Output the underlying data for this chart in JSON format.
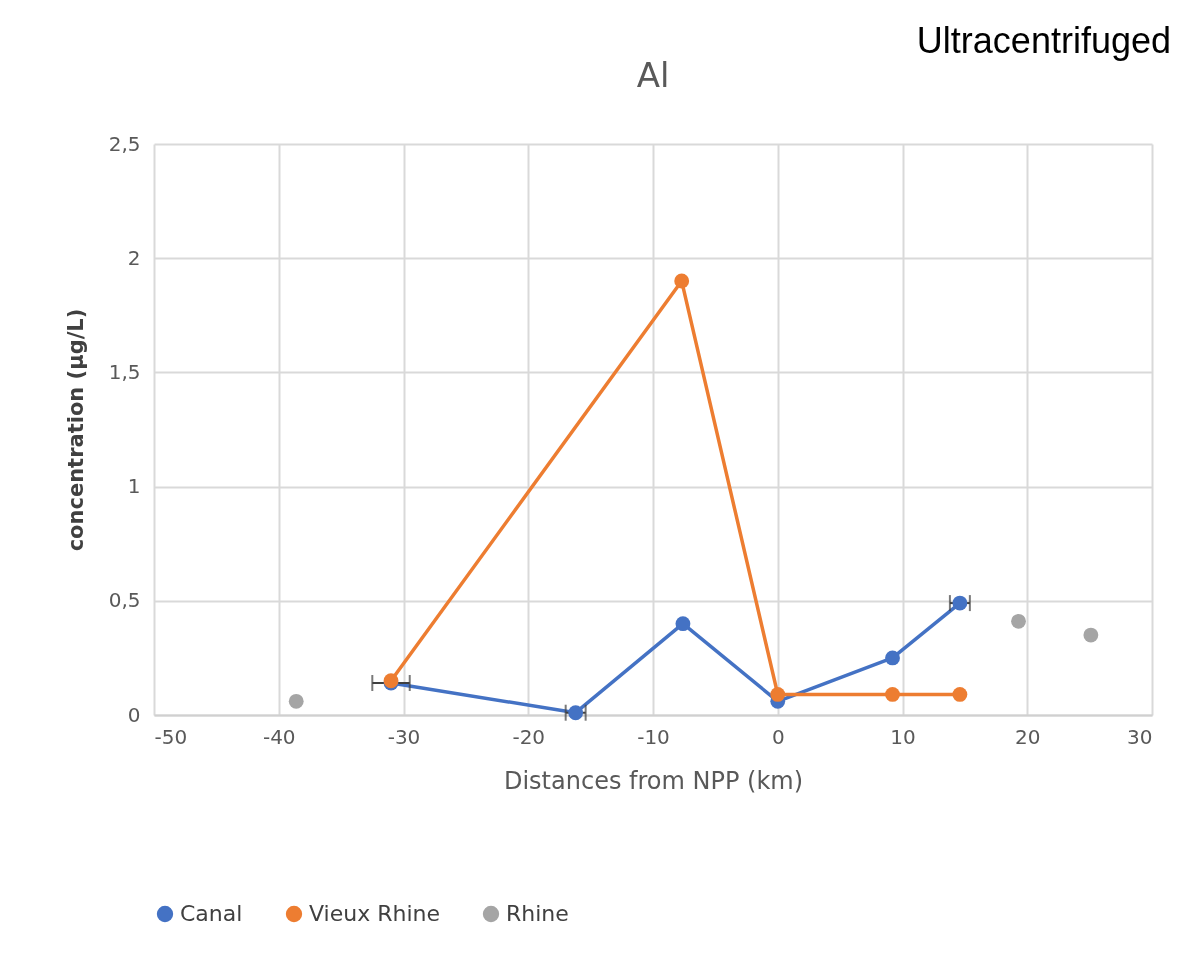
{
  "chart_data": {
    "type": "line",
    "title": "Al",
    "xlabel": "Distances from NPP (km)",
    "ylabel": "concentration (µg/L)",
    "annotations": [
      "Ultracentrifuged"
    ],
    "xlim": [
      -50,
      30
    ],
    "xticks": [
      -50,
      -40,
      -30,
      -20,
      -10,
      0,
      10,
      20,
      30
    ],
    "ylim": [
      0,
      2.5
    ],
    "yticks": [
      0,
      {
        "value": 0.5,
        "label": "0,5"
      },
      1,
      {
        "value": 1.5,
        "label": "1,5"
      },
      2,
      {
        "value": 2.5,
        "label": "2,5"
      }
    ],
    "grid": true,
    "legend": "bottom",
    "marker": "circle",
    "line_style": "solid",
    "series": [
      {
        "name": "Canal",
        "type": "line",
        "color": "#4472c4",
        "x": [
          -31,
          -16.2,
          -7.6,
          0,
          9.2,
          14.6
        ],
        "values": [
          0.14,
          0.01,
          0.4,
          0.06,
          0.25,
          0.49
        ],
        "xerrors": [
          1.5,
          0.8,
          null,
          null,
          null,
          0.8
        ]
      },
      {
        "name": "Vieux Rhine",
        "type": "line",
        "color": "#ed7d31",
        "x": [
          -31,
          -7.7,
          0,
          9.2,
          14.6
        ],
        "values": [
          0.15,
          1.9,
          0.09,
          0.09,
          0.09
        ]
      },
      {
        "name": "Rhine",
        "type": "scatter",
        "color": "#a5a5a5",
        "x": [
          -38.6,
          19.3,
          25.1
        ],
        "values": [
          0.06,
          0.41,
          0.35
        ]
      }
    ]
  }
}
